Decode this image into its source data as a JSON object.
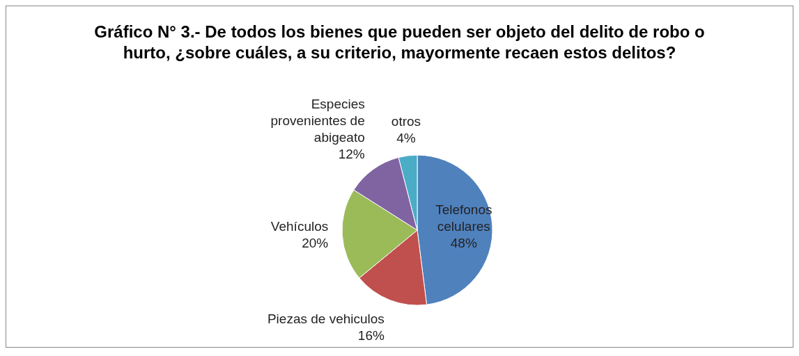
{
  "chart_data": {
    "type": "pie",
    "title": "Gráfico N° 3.- De todos los bienes que pueden ser objeto del delito de robo o hurto, ¿sobre cuáles, a su criterio, mayormente recaen estos delitos?",
    "categories": [
      "Telefonos celulares",
      "Piezas de vehiculos",
      "Vehículos",
      "Especies provenientes de abigeato",
      "otros"
    ],
    "values": [
      48,
      16,
      20,
      12,
      4
    ],
    "value_labels": [
      "48%",
      "16%",
      "20%",
      "12%",
      "4%"
    ],
    "colors": [
      "#4f81bd",
      "#c0504d",
      "#9bbb59",
      "#8064a2",
      "#4bacc6"
    ]
  }
}
